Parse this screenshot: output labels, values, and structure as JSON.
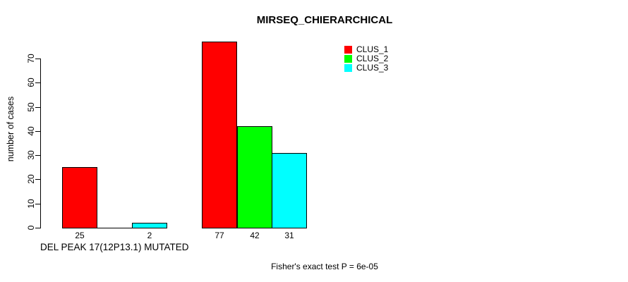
{
  "chart_data": {
    "type": "bar",
    "title": "MIRSEQ_CHIERARCHICAL",
    "ylabel": "number of cases",
    "xlabel": "",
    "ylim": [
      0,
      70
    ],
    "yticks": [
      0,
      10,
      20,
      30,
      40,
      50,
      60,
      70
    ],
    "grid": false,
    "categories": [
      "DEL PEAK 17(12P13.1) MUTATED",
      ""
    ],
    "series": [
      {
        "name": "CLUS_1",
        "color": "#ff0000",
        "values": [
          25,
          77
        ]
      },
      {
        "name": "CLUS_2",
        "color": "#00ff00",
        "values": [
          0,
          42
        ]
      },
      {
        "name": "CLUS_3",
        "color": "#00ffff",
        "values": [
          2,
          31
        ]
      }
    ],
    "value_labels": [
      [
        "25",
        "",
        "2"
      ],
      [
        "77",
        "42",
        "31"
      ]
    ],
    "legend": {
      "position": "top-right",
      "entries": [
        {
          "label": "CLUS_1",
          "color": "#ff0000"
        },
        {
          "label": "CLUS_2",
          "color": "#00ff00"
        },
        {
          "label": "CLUS_3",
          "color": "#00ffff"
        }
      ]
    },
    "annotation": "Fisher's exact test P = 6e-05",
    "bar_border_color": "#000000",
    "background_color": "#ffffff"
  }
}
